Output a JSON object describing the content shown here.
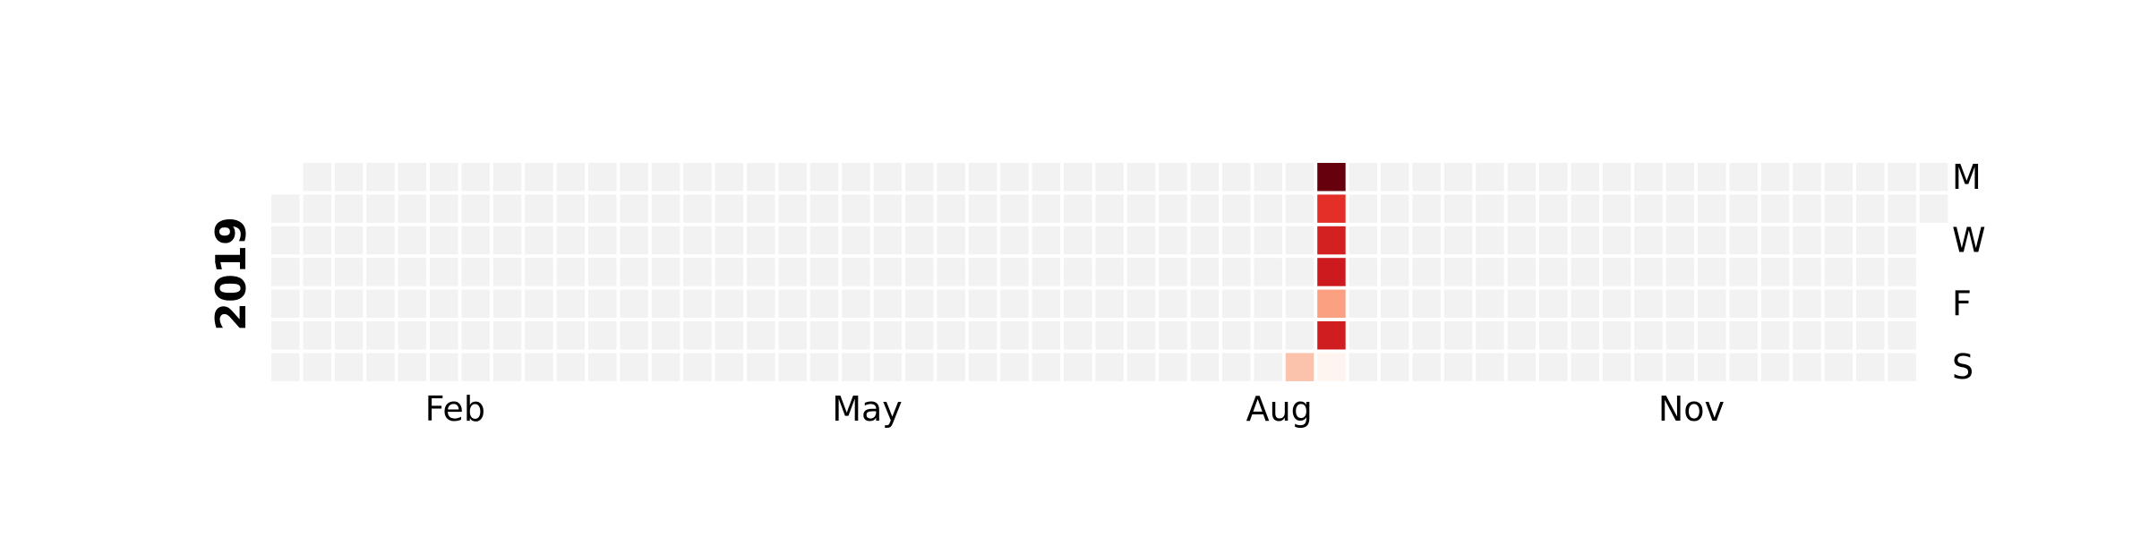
{
  "chart_data": {
    "type": "heatmap",
    "subtype": "calendar",
    "year": "2019",
    "month_labels": [
      "Feb",
      "May",
      "Aug",
      "Nov"
    ],
    "month_label_dates": [
      "2019-02-01",
      "2019-05-01",
      "2019-08-01",
      "2019-11-01"
    ],
    "day_labels": [
      "M",
      "W",
      "F",
      "S"
    ],
    "day_label_rows": [
      0,
      2,
      4,
      6
    ],
    "colormap": "Reds",
    "empty_color": "#f2f2f2",
    "empty_value_meaning": "no data",
    "grid": false,
    "legend": "none",
    "values": [
      {
        "date": "2019-08-18",
        "value": 3
      },
      {
        "date": "2019-08-19",
        "value": 10
      },
      {
        "date": "2019-08-20",
        "value": 7
      },
      {
        "date": "2019-08-21",
        "value": 7.5
      },
      {
        "date": "2019-08-22",
        "value": 7.7
      },
      {
        "date": "2019-08-23",
        "value": 4
      },
      {
        "date": "2019-08-24",
        "value": 7.6
      },
      {
        "date": "2019-08-25",
        "value": 1
      }
    ]
  }
}
